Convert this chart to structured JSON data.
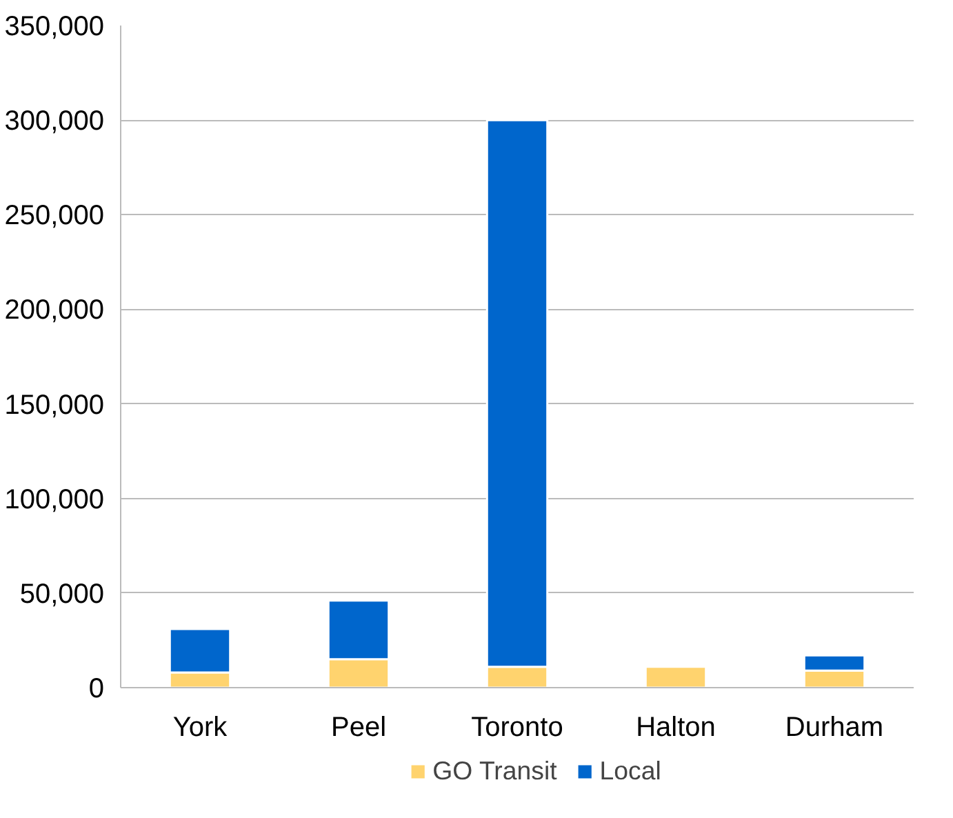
{
  "chart_data": {
    "type": "bar",
    "stacked": true,
    "categories": [
      "York",
      "Peel",
      "Toronto",
      "Halton",
      "Durham"
    ],
    "series": [
      {
        "name": "GO Transit",
        "color": "#ffd36e",
        "values": [
          8000,
          15000,
          11000,
          11000,
          9000
        ]
      },
      {
        "name": "Local",
        "color": "#0066cc",
        "values": [
          23000,
          31000,
          289000,
          0,
          8000
        ]
      }
    ],
    "ylim": [
      0,
      350000
    ],
    "yticks": [
      {
        "value": 0,
        "label": "0"
      },
      {
        "value": 50000,
        "label": "50,000"
      },
      {
        "value": 100000,
        "label": "100,000"
      },
      {
        "value": 150000,
        "label": "150,000"
      },
      {
        "value": 200000,
        "label": "200,000"
      },
      {
        "value": 250000,
        "label": "250,000"
      },
      {
        "value": 300000,
        "label": "300,000"
      },
      {
        "value": 350000,
        "label": "350,000"
      }
    ],
    "grid": "y",
    "legend": "bottom"
  }
}
